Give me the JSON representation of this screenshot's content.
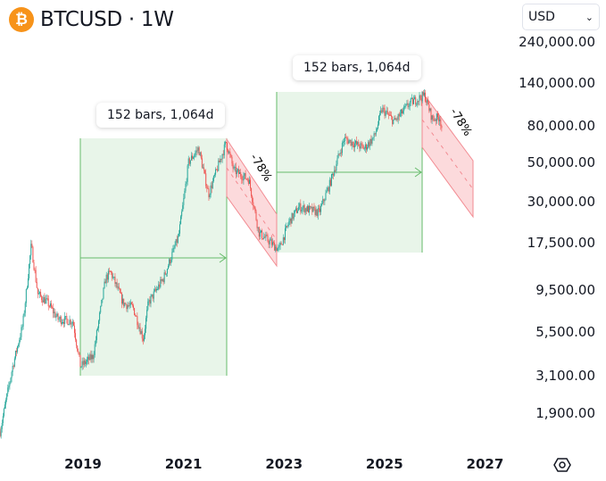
{
  "header": {
    "symbol_icon": "bitcoin-icon",
    "title": "BTCUSD · 1W"
  },
  "currency_select": {
    "value": "USD",
    "icon": "chevron-down-icon"
  },
  "settings_icon": "settings-hexagon-icon",
  "measurements": [
    {
      "label": "152 bars, 1,064d",
      "percent_label": "-78%"
    },
    {
      "label": "152 bars, 1,064d",
      "percent_label": "-78%"
    }
  ],
  "colors": {
    "up": "#26a69a",
    "down": "#ef5350",
    "range_fill": "#e8f5e9",
    "range_line": "#66bb6a",
    "channel_fill": "#fbd3d6",
    "channel_line": "#f28b92"
  },
  "chart_data": {
    "type": "candlestick",
    "title": "BTCUSD · 1W",
    "yscale": "log",
    "ylim": [
      1300,
      330000
    ],
    "y_ticks": [
      "240,000.00",
      "140,000.00",
      "80,000.00",
      "50,000.00",
      "30,000.00",
      "17,500.00",
      "9,500.00",
      "5,500.00",
      "3,100.00",
      "1,900.00"
    ],
    "y_tick_values": [
      240000,
      140000,
      80000,
      50000,
      30000,
      17500,
      9500,
      5500,
      3100,
      1900
    ],
    "x_ticks": [
      "2019",
      "2021",
      "2023",
      "2025",
      "2027"
    ],
    "x_tick_values": [
      2019,
      2021,
      2023,
      2025,
      2027
    ],
    "series": [
      [
        2017.35,
        1500
      ],
      [
        2017.6,
        3500
      ],
      [
        2017.8,
        6000
      ],
      [
        2017.97,
        17000
      ],
      [
        2018.1,
        9000
      ],
      [
        2018.3,
        8000
      ],
      [
        2018.5,
        6500
      ],
      [
        2018.8,
        6300
      ],
      [
        2018.95,
        3500
      ],
      [
        2019.2,
        4000
      ],
      [
        2019.45,
        11000
      ],
      [
        2019.55,
        12000
      ],
      [
        2019.8,
        8000
      ],
      [
        2020.0,
        7500
      ],
      [
        2020.2,
        5000
      ],
      [
        2020.3,
        8000
      ],
      [
        2020.6,
        11000
      ],
      [
        2020.9,
        19000
      ],
      [
        2021.0,
        30000
      ],
      [
        2021.1,
        50000
      ],
      [
        2021.3,
        60000
      ],
      [
        2021.5,
        33000
      ],
      [
        2021.85,
        65000
      ],
      [
        2022.0,
        45000
      ],
      [
        2022.3,
        40000
      ],
      [
        2022.5,
        20000
      ],
      [
        2022.9,
        16000
      ],
      [
        2023.1,
        23000
      ],
      [
        2023.3,
        28000
      ],
      [
        2023.7,
        26000
      ],
      [
        2023.9,
        37000
      ],
      [
        2024.2,
        68000
      ],
      [
        2024.6,
        60000
      ],
      [
        2024.8,
        70000
      ],
      [
        2024.95,
        100000
      ],
      [
        2025.2,
        85000
      ],
      [
        2025.5,
        108000
      ],
      [
        2025.8,
        120000
      ],
      [
        2025.95,
        88000
      ],
      [
        2026.1,
        90000
      ],
      [
        2026.15,
        76000
      ]
    ]
  }
}
